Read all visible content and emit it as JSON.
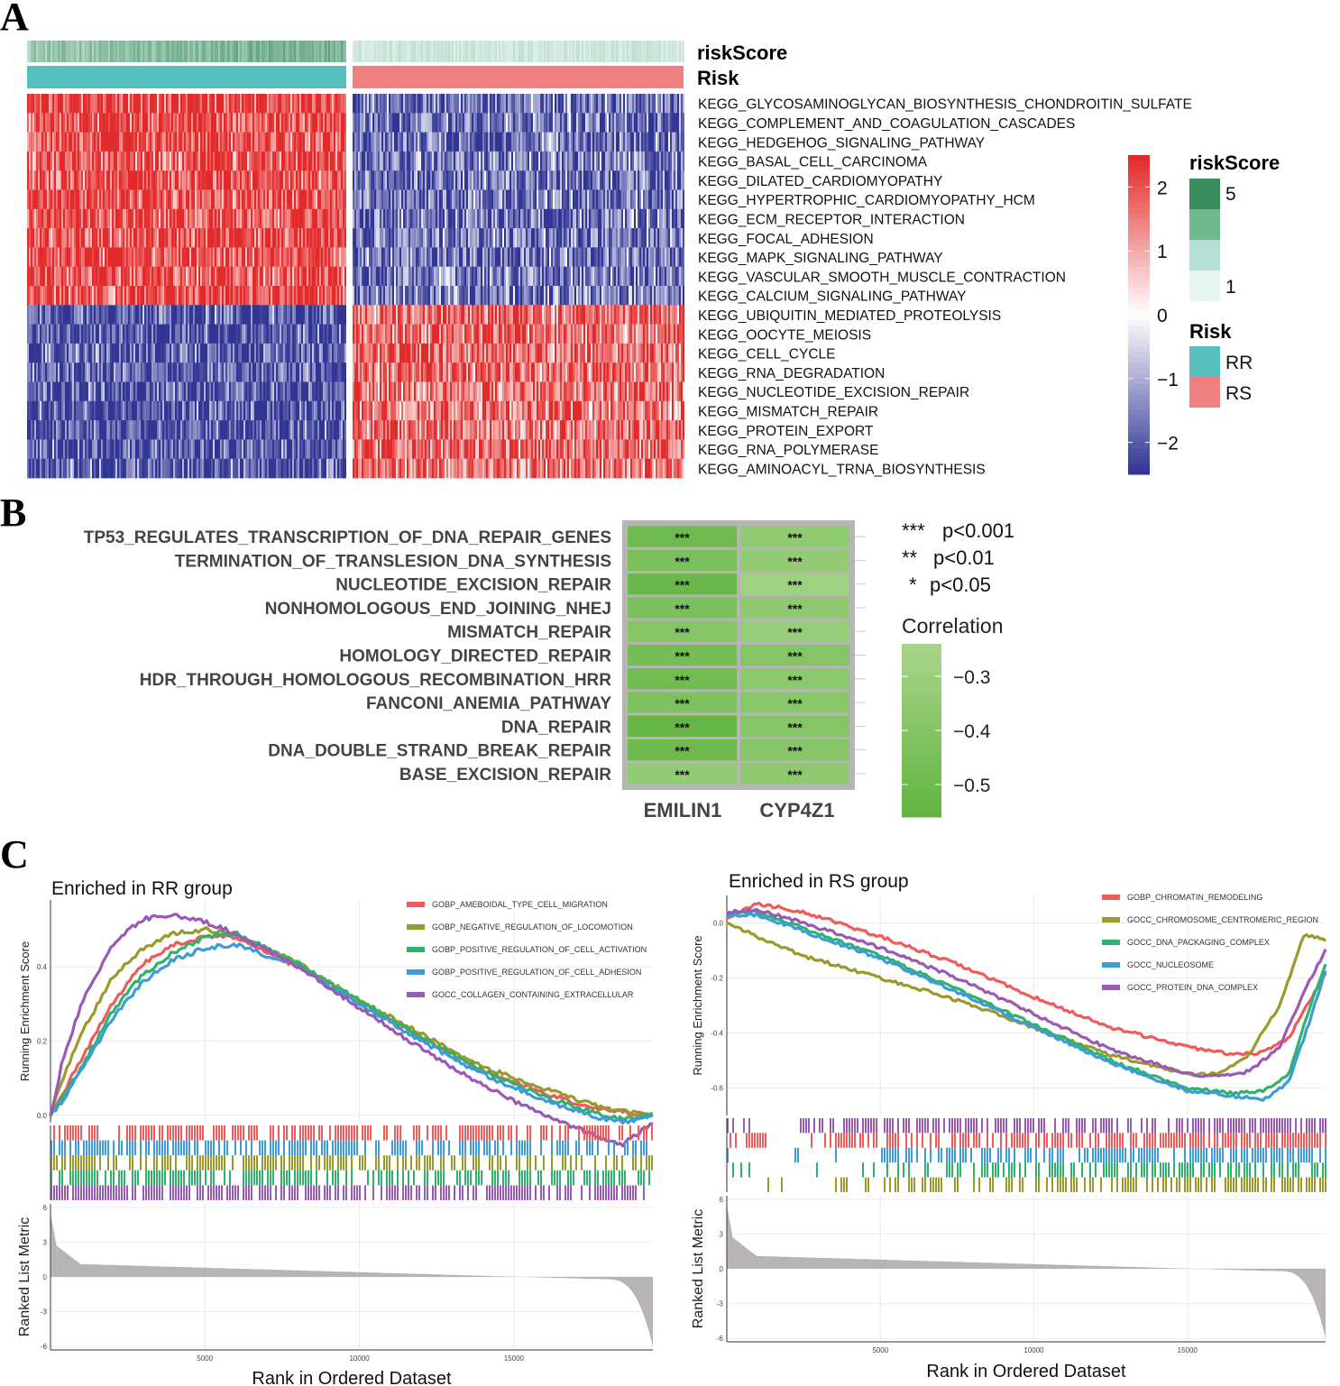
{
  "figure": {
    "panel_a_letter": "A",
    "panel_b_letter": "B",
    "panel_c_letter": "C"
  },
  "chart_data": [
    {
      "type": "heatmap",
      "panel": "A",
      "annotation_rows": [
        "riskScore",
        "Risk"
      ],
      "groups": [
        "RR",
        "RS"
      ],
      "group_colors": {
        "RR": "#55BFBF",
        "RS": "#F08080"
      },
      "rows": [
        "KEGG_GLYCOSAMINOGLYCAN_BIOSYNTHESIS_CHONDROITIN_SULFATE",
        "KEGG_COMPLEMENT_AND_COAGULATION_CASCADES",
        "KEGG_HEDGEHOG_SIGNALING_PATHWAY",
        "KEGG_BASAL_CELL_CARCINOMA",
        "KEGG_DILATED_CARDIOMYOPATHY",
        "KEGG_HYPERTROPHIC_CARDIOMYOPATHY_HCM",
        "KEGG_ECM_RECEPTOR_INTERACTION",
        "KEGG_FOCAL_ADHESION",
        "KEGG_MAPK_SIGNALING_PATHWAY",
        "KEGG_VASCULAR_SMOOTH_MUSCLE_CONTRACTION",
        "KEGG_CALCIUM_SIGNALING_PATHWAY",
        "KEGG_UBIQUITIN_MEDIATED_PROTEOLYSIS",
        "KEGG_OOCYTE_MEIOSIS",
        "KEGG_CELL_CYCLE",
        "KEGG_RNA_DEGRADATION",
        "KEGG_NUCLEOTIDE_EXCISION_REPAIR",
        "KEGG_MISMATCH_REPAIR",
        "KEGG_PROTEIN_EXPORT",
        "KEGG_RNA_POLYMERASE",
        "KEGG_AMINOACYL_TRNA_BIOSYNTHESIS"
      ],
      "row_pattern_rr": [
        1,
        1,
        1,
        1,
        1,
        1,
        1,
        1,
        1,
        1,
        1,
        -1,
        -1,
        -1,
        -1,
        -1,
        -1,
        -1,
        -1,
        -1
      ],
      "color_scale": {
        "min": -2.5,
        "max": 2.5,
        "low": "#313695",
        "mid": "#FFFFFF",
        "high": "#E32A2A",
        "ticks": [
          "2",
          "1",
          "0",
          "−1",
          "−2"
        ]
      },
      "riskscore_legend": {
        "title": "riskScore",
        "ticks": [
          "5",
          "1"
        ],
        "colors": [
          "#3A8E5C",
          "#6FB88E",
          "#B4DED6",
          "#E6F4F2"
        ]
      },
      "risk_legend": {
        "title": "Risk",
        "items": [
          "RR",
          "RS"
        ]
      }
    },
    {
      "type": "heatmap",
      "panel": "B",
      "rows": [
        "TP53_REGULATES_TRANSCRIPTION_OF_DNA_REPAIR_GENES",
        "TERMINATION_OF_TRANSLESION_DNA_SYNTHESIS",
        "NUCLEOTIDE_EXCISION_REPAIR",
        "NONHOMOLOGOUS_END_JOINING_NHEJ",
        "MISMATCH_REPAIR",
        "HOMOLOGY_DIRECTED_REPAIR",
        "HDR_THROUGH_HOMOLOGOUS_RECOMBINATION_HRR",
        "FANCONI_ANEMIA_PATHWAY",
        "DNA_REPAIR",
        "DNA_DOUBLE_STRAND_BREAK_REPAIR",
        "BASE_EXCISION_REPAIR"
      ],
      "columns": [
        "EMILIN1",
        "CYP4Z1"
      ],
      "values": [
        [
          -0.5,
          -0.35
        ],
        [
          -0.45,
          -0.34
        ],
        [
          -0.52,
          -0.28
        ],
        [
          -0.44,
          -0.36
        ],
        [
          -0.4,
          -0.32
        ],
        [
          -0.47,
          -0.4
        ],
        [
          -0.49,
          -0.37
        ],
        [
          -0.43,
          -0.38
        ],
        [
          -0.54,
          -0.4
        ],
        [
          -0.51,
          -0.39
        ],
        [
          -0.34,
          -0.36
        ]
      ],
      "stars": "***",
      "significance_legend": [
        {
          "stars": "***",
          "label": "p<0.001"
        },
        {
          "stars": "**",
          "label": "p<0.01"
        },
        {
          "stars": "*",
          "label": "p<0.05"
        }
      ],
      "legend_title": "Correlation",
      "legend_ticks": [
        -0.3,
        -0.4,
        -0.5
      ],
      "legend_tick_labels": [
        "−0.3",
        "−0.4",
        "−0.5"
      ],
      "color_range": [
        -0.56,
        -0.24
      ],
      "color_low": "#62B440",
      "color_high": "#A8D58C"
    },
    {
      "type": "line",
      "panel": "C-left",
      "title": "Enriched in RR group",
      "ylabel": "Running Enrichment Score",
      "ylabel2": "Ranked List Metric",
      "xlabel": "Rank in Ordered Dataset",
      "x_ticks": [
        5000,
        10000,
        15000
      ],
      "x_tick_labels": [
        "5000",
        "10000",
        "15000"
      ],
      "xlim": [
        0,
        19500
      ],
      "ylim": [
        -0.02,
        0.58
      ],
      "y_ticks": [
        0.0,
        0.2,
        0.4
      ],
      "y_tick_labels": [
        "0.0",
        "0.2",
        "0.4"
      ],
      "metric_ylim": [
        -6.3,
        6.3
      ],
      "metric_ticks": [
        6,
        3,
        0,
        -3,
        -6
      ],
      "metric_tick_labels": [
        "6",
        "3",
        "0",
        "-3",
        "-6"
      ],
      "series": [
        {
          "name": "GOBP_AMEBOIDAL_TYPE_CELL_MIGRATION",
          "color": "#EF5B5B",
          "x": [
            0,
            400,
            1000,
            2000,
            3000,
            4000,
            5000,
            6000,
            8000,
            10000,
            12000,
            14000,
            16000,
            17500,
            18500,
            19500
          ],
          "y": [
            0.0,
            0.06,
            0.15,
            0.3,
            0.41,
            0.46,
            0.48,
            0.48,
            0.4,
            0.3,
            0.21,
            0.12,
            0.06,
            0.02,
            0.01,
            0.0
          ]
        },
        {
          "name": "GOBP_NEGATIVE_REGULATION_OF_LOCOMOTION",
          "color": "#9A9A2A",
          "x": [
            0,
            400,
            1000,
            2000,
            3000,
            4000,
            5000,
            6000,
            8000,
            10000,
            12000,
            14000,
            16000,
            17500,
            18500,
            19500
          ],
          "y": [
            0.0,
            0.1,
            0.22,
            0.37,
            0.45,
            0.49,
            0.5,
            0.49,
            0.41,
            0.31,
            0.22,
            0.13,
            0.07,
            0.03,
            0.01,
            0.0
          ]
        },
        {
          "name": "GOBP_POSITIVE_REGULATION_OF_CELL_ACTIVATION",
          "color": "#2DB36B",
          "x": [
            0,
            400,
            1000,
            2000,
            3000,
            4000,
            5000,
            6000,
            8000,
            10000,
            12000,
            14000,
            16000,
            17500,
            18500,
            19500
          ],
          "y": [
            0.0,
            0.05,
            0.13,
            0.28,
            0.38,
            0.44,
            0.48,
            0.49,
            0.41,
            0.31,
            0.21,
            0.12,
            0.05,
            0.01,
            -0.01,
            0.0
          ]
        },
        {
          "name": "GOBP_POSITIVE_REGULATION_OF_CELL_ADHESION",
          "color": "#3D9BD8",
          "x": [
            0,
            400,
            1000,
            2000,
            3000,
            4000,
            5000,
            6000,
            8000,
            10000,
            12000,
            14000,
            16000,
            17500,
            18500,
            19500
          ],
          "y": [
            0.0,
            0.04,
            0.12,
            0.26,
            0.36,
            0.42,
            0.45,
            0.46,
            0.4,
            0.3,
            0.2,
            0.11,
            0.04,
            0.0,
            -0.02,
            0.0
          ]
        },
        {
          "name": "GOCC_COLLAGEN_CONTAINING_EXTRACELLULAR",
          "color": "#9B59B6",
          "x": [
            0,
            400,
            1000,
            2000,
            3000,
            4000,
            5000,
            6000,
            8000,
            10000,
            12000,
            14000,
            16000,
            17500,
            18500,
            19500
          ],
          "y": [
            0.0,
            0.15,
            0.3,
            0.46,
            0.53,
            0.54,
            0.52,
            0.49,
            0.4,
            0.29,
            0.18,
            0.08,
            0.0,
            -0.05,
            -0.08,
            -0.02
          ]
        }
      ]
    },
    {
      "type": "line",
      "panel": "C-right",
      "title": "Enriched in RS group",
      "ylabel": "Running Enrichment Score",
      "ylabel2": "Ranked List Metric",
      "xlabel": "Rank in Ordered Dataset",
      "x_ticks": [
        5000,
        10000,
        15000
      ],
      "x_tick_labels": [
        "5000",
        "10000",
        "15000"
      ],
      "xlim": [
        0,
        19500
      ],
      "ylim": [
        -0.7,
        0.1
      ],
      "y_ticks": [
        0.0,
        -0.2,
        -0.4,
        -0.6
      ],
      "y_tick_labels": [
        "0.0",
        "-0.2",
        "-0.4",
        "-0.6"
      ],
      "metric_ylim": [
        -6.3,
        6.3
      ],
      "metric_ticks": [
        6,
        3,
        0,
        -3,
        -6
      ],
      "metric_tick_labels": [
        "6",
        "3",
        "0",
        "-3",
        "-6"
      ],
      "series": [
        {
          "name": "GOBP_CHROMATIN_REMODELING",
          "color": "#EF5B5B",
          "x": [
            0,
            1000,
            2500,
            5000,
            7500,
            10000,
            12500,
            15000,
            16500,
            17500,
            18300,
            19000,
            19500
          ],
          "y": [
            0.02,
            0.07,
            0.04,
            -0.05,
            -0.15,
            -0.27,
            -0.38,
            -0.45,
            -0.48,
            -0.47,
            -0.42,
            -0.28,
            -0.18
          ]
        },
        {
          "name": "GOCC_CHROMOSOME_CENTROMERIC_REGION",
          "color": "#9A9A2A",
          "x": [
            0,
            1000,
            2500,
            5000,
            7500,
            10000,
            12500,
            15000,
            16000,
            17000,
            18000,
            18800,
            19500
          ],
          "y": [
            0.0,
            -0.05,
            -0.12,
            -0.2,
            -0.28,
            -0.38,
            -0.48,
            -0.55,
            -0.55,
            -0.48,
            -0.3,
            -0.04,
            -0.06
          ]
        },
        {
          "name": "GOCC_DNA_PACKAGING_COMPLEX",
          "color": "#2DB36B",
          "x": [
            0,
            1000,
            2500,
            5000,
            7500,
            10000,
            12500,
            15000,
            16500,
            17500,
            18300,
            19000,
            19500
          ],
          "y": [
            0.03,
            0.04,
            -0.02,
            -0.12,
            -0.24,
            -0.37,
            -0.5,
            -0.6,
            -0.62,
            -0.61,
            -0.55,
            -0.3,
            -0.15
          ]
        },
        {
          "name": "GOCC_NUCLEOSOME",
          "color": "#3D9BD8",
          "x": [
            0,
            1000,
            2500,
            5000,
            7500,
            10000,
            12500,
            15000,
            16500,
            17500,
            18300,
            19000,
            19500
          ],
          "y": [
            0.03,
            0.03,
            -0.03,
            -0.13,
            -0.25,
            -0.38,
            -0.51,
            -0.61,
            -0.63,
            -0.64,
            -0.58,
            -0.35,
            -0.17
          ]
        },
        {
          "name": "GOCC_PROTEIN_DNA_COMPLEX",
          "color": "#9B59B6",
          "x": [
            0,
            1000,
            2500,
            5000,
            7500,
            10000,
            12500,
            15000,
            16000,
            17000,
            18000,
            18800,
            19500
          ],
          "y": [
            0.04,
            0.05,
            0.0,
            -0.09,
            -0.2,
            -0.33,
            -0.46,
            -0.55,
            -0.56,
            -0.54,
            -0.45,
            -0.25,
            -0.1
          ]
        }
      ]
    }
  ]
}
